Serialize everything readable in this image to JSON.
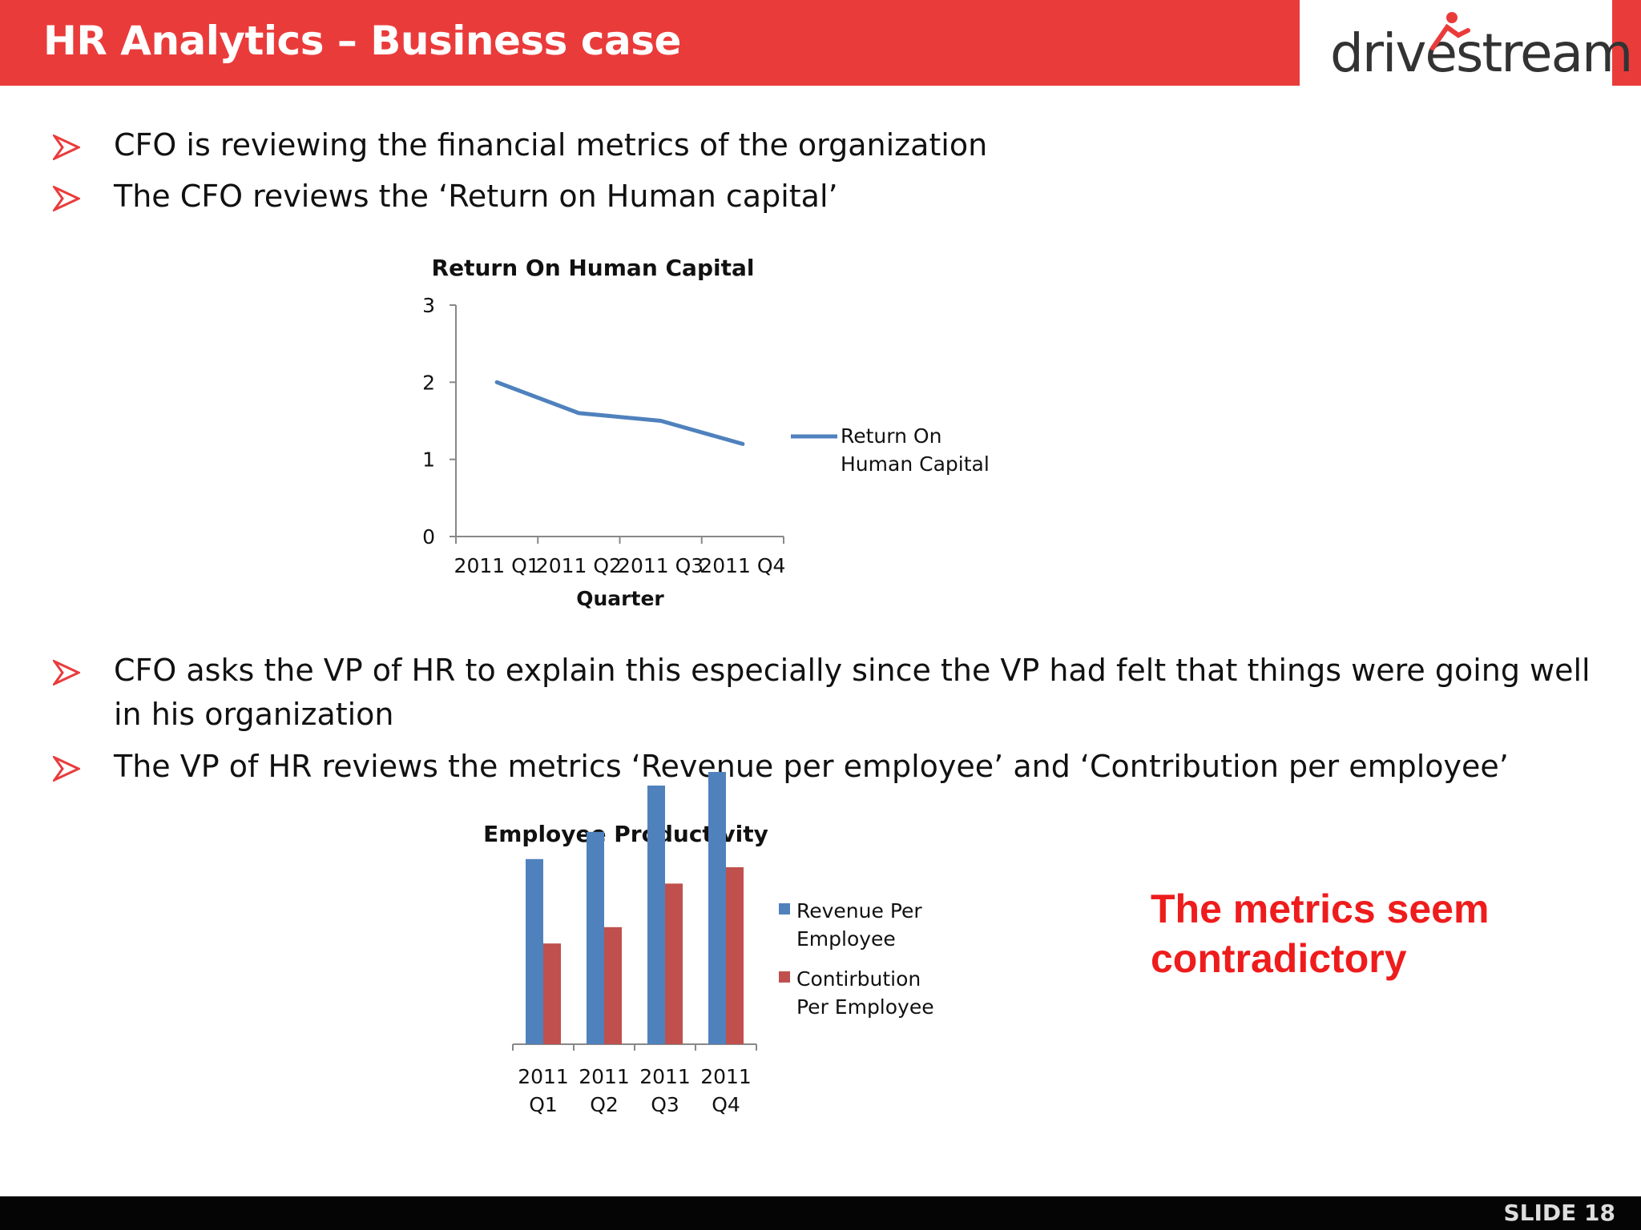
{
  "header": {
    "title": "HR Analytics – Business case",
    "logo_text": "drivestream",
    "accent_color": "#ea3b3b"
  },
  "bullets_top": [
    "CFO is reviewing the financial metrics of the organization",
    "The CFO reviews the ‘Return on Human capital’"
  ],
  "bullets_bottom": [
    "CFO asks the VP of HR to explain this especially since the VP had felt that things were going well in his organization",
    "The VP of HR reviews the metrics ‘Revenue per employee’ and ‘Contribution per employee’"
  ],
  "callout": {
    "text": "The metrics seem contradictory",
    "color": "#ee1c1c"
  },
  "footer": {
    "slide_label": "SLIDE 18"
  },
  "chart_data": [
    {
      "type": "line",
      "title": "Return On Human Capital",
      "xlabel": "Quarter",
      "ylabel": "",
      "categories": [
        "2011 Q1",
        "2011 Q2",
        "2011 Q3",
        "2011 Q4"
      ],
      "ylim": [
        0,
        3
      ],
      "yticks": [
        "0",
        "1",
        "2",
        "3"
      ],
      "series": [
        {
          "name": "Return On Human Capital",
          "values": [
            2.0,
            1.6,
            1.5,
            1.2
          ],
          "color": "#4f81bd"
        }
      ],
      "legend": "right",
      "grid": false
    },
    {
      "type": "bar",
      "title": "Employee Productivity",
      "xlabel": "",
      "ylabel": "",
      "categories": [
        "2011 Q1",
        "2011 Q2",
        "2011 Q3",
        "2011 Q4"
      ],
      "ylim": [
        0,
        100
      ],
      "series": [
        {
          "name": "Revenue Per Employee",
          "values": [
            68,
            78,
            95,
            100
          ],
          "color": "#4f81bd"
        },
        {
          "name": "Contirbution Per Employee",
          "values": [
            37,
            43,
            59,
            65
          ],
          "color": "#c0504d"
        }
      ],
      "legend": "right",
      "grid": false
    }
  ]
}
